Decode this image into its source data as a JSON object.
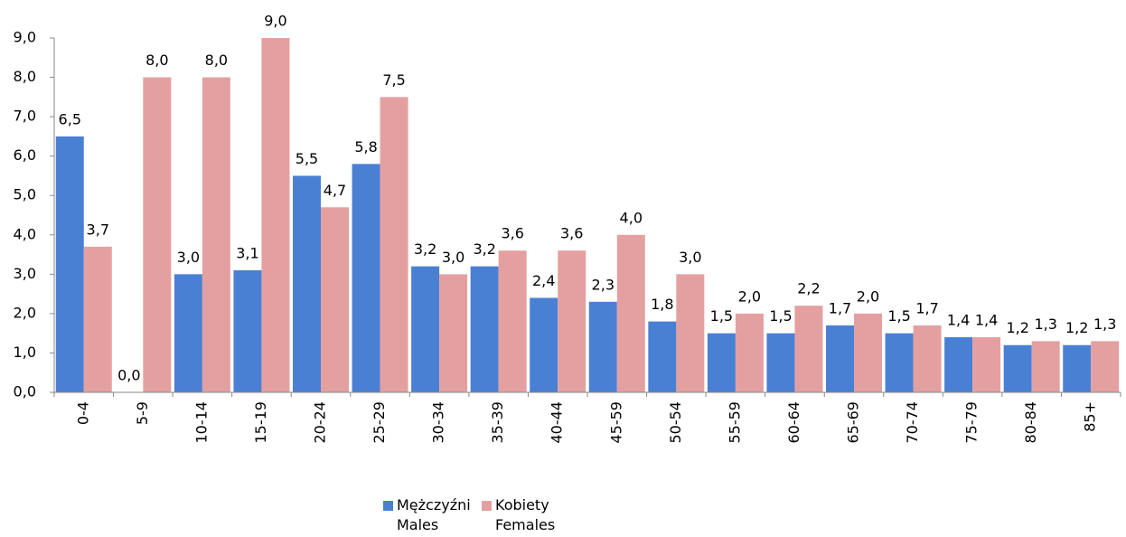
{
  "chart_data": {
    "type": "bar",
    "categories": [
      "0-4",
      "5-9",
      "10-14",
      "15-19",
      "20-24",
      "25-29",
      "30-34",
      "35-39",
      "40-44",
      "45-59",
      "50-54",
      "55-59",
      "60-64",
      "65-69",
      "70-74",
      "75-79",
      "80-84",
      "85+"
    ],
    "series": [
      {
        "name": "Mężczyźni Males",
        "color": "#4a80d4",
        "values": [
          6.5,
          0.0,
          3.0,
          3.1,
          5.5,
          5.8,
          3.2,
          3.2,
          2.4,
          2.3,
          1.8,
          1.5,
          1.5,
          1.7,
          1.5,
          1.4,
          1.2,
          1.2
        ],
        "value_labels": [
          "6,5",
          "0,0",
          "3,0",
          "3,1",
          "5,5",
          "5,8",
          "3,2",
          "3,2",
          "2,4",
          "2,3",
          "1,8",
          "1,5",
          "1,5",
          "1,7",
          "1,5",
          "1,4",
          "1,2",
          "1,2"
        ]
      },
      {
        "name": "Kobiety Females",
        "color": "#e4a0a0",
        "values": [
          3.7,
          8.0,
          8.0,
          9.0,
          4.7,
          7.5,
          3.0,
          3.6,
          3.6,
          4.0,
          3.0,
          2.0,
          2.2,
          2.0,
          1.7,
          1.4,
          1.3,
          1.3
        ],
        "value_labels": [
          "3,7",
          "8,0",
          "8,0",
          "9,0",
          "4,7",
          "7,5",
          "3,0",
          "3,6",
          "3,6",
          "4,0",
          "3,0",
          "2,0",
          "2,2",
          "2,0",
          "1,7",
          "1,4",
          "1,3",
          "1,3"
        ]
      }
    ],
    "ylim": [
      0,
      9
    ],
    "yticks": [
      {
        "value": 0,
        "label": "0,0"
      },
      {
        "value": 1,
        "label": "1,0"
      },
      {
        "value": 2,
        "label": "2,0"
      },
      {
        "value": 3,
        "label": "3,0"
      },
      {
        "value": 4,
        "label": "4,0"
      },
      {
        "value": 5,
        "label": "5,0"
      },
      {
        "value": 6,
        "label": "6,0"
      },
      {
        "value": 7,
        "label": "7,0"
      },
      {
        "value": 8,
        "label": "8,0"
      },
      {
        "value": 9,
        "label": "9,0"
      }
    ],
    "legend": "bottom"
  }
}
